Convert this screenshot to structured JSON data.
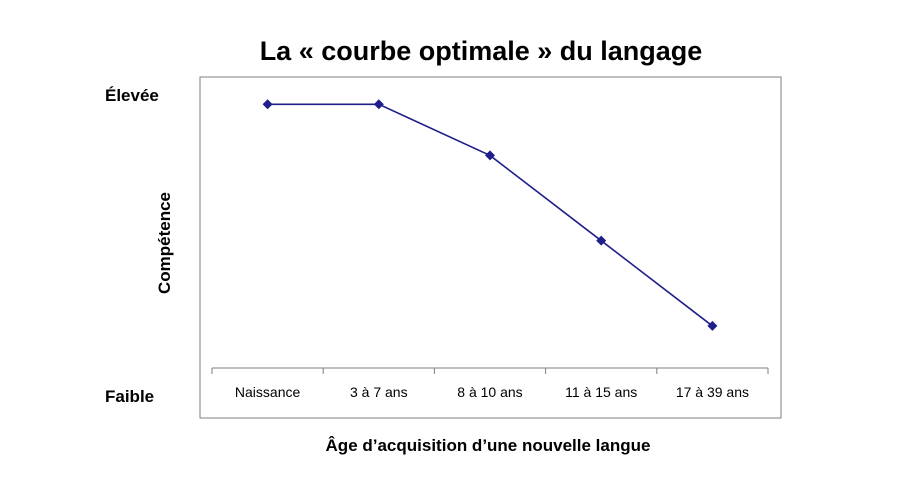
{
  "chart_data": {
    "type": "line",
    "title": "La « courbe optimale » du langage",
    "xlabel": "Âge d’acquisition d’une nouvelle langue",
    "ylabel": "Compétence",
    "y_high_label": "Élevée",
    "y_low_label": "Faible",
    "categories": [
      "Naissance",
      "3 à 7 ans",
      "8 à 10 ans",
      "11 à 15 ans",
      "17 à 39 ans"
    ],
    "series": [
      {
        "values": [
          0.92,
          0.92,
          0.77,
          0.52,
          0.27
        ]
      }
    ],
    "ylim": [
      0,
      1
    ],
    "grid": false,
    "legend": "none",
    "line_color": "#1f1f8c",
    "marker": "diamond"
  }
}
